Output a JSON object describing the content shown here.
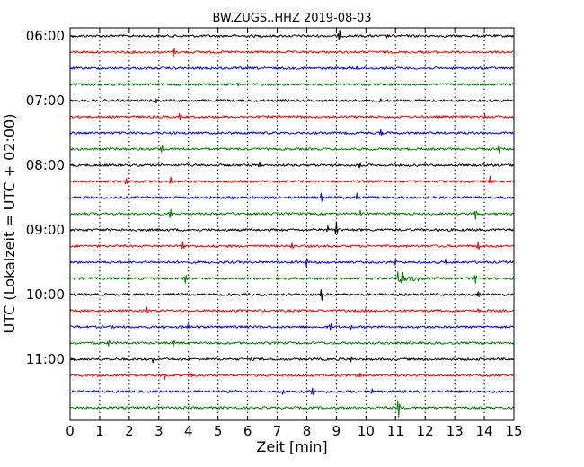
{
  "chart_data": {
    "type": "line",
    "subtype": "seismogram-dayplot",
    "title": "BW.ZUGS..HHZ 2019-08-03",
    "xlabel": "Zeit  [min]",
    "ylabel": "UTC (Lokalzeit = UTC + 02:00)",
    "xlim": [
      0,
      15
    ],
    "x_ticks": [
      "0",
      "1",
      "2",
      "3",
      "4",
      "5",
      "6",
      "7",
      "8",
      "9",
      "10",
      "11",
      "12",
      "13",
      "14",
      "15"
    ],
    "grid": "vertical dotted at each minute",
    "minutes_per_line": 15,
    "start_time": "06:00",
    "y_tick_labels": [
      "06:00",
      "07:00",
      "08:00",
      "09:00",
      "10:00",
      "11:00"
    ],
    "line_colors": [
      "#000000",
      "#ff0000",
      "#0000ff",
      "#008000"
    ],
    "lines": [
      {
        "start": "06:00",
        "color": "#000000",
        "spikes": [
          {
            "min": 9.1,
            "amp": 7
          },
          {
            "min": 10.7,
            "amp": 3
          }
        ]
      },
      {
        "start": "06:15",
        "color": "#ff0000",
        "spikes": [
          {
            "min": 3.5,
            "amp": 5
          }
        ]
      },
      {
        "start": "06:30",
        "color": "#0000ff",
        "spikes": [
          {
            "min": 9.7,
            "amp": 3
          }
        ]
      },
      {
        "start": "06:45",
        "color": "#008000",
        "spikes": [
          {
            "min": 5.7,
            "amp": 3
          }
        ]
      },
      {
        "start": "07:00",
        "color": "#000000",
        "spikes": [
          {
            "min": 2.9,
            "amp": 3
          },
          {
            "min": 10.5,
            "amp": 3
          }
        ]
      },
      {
        "start": "07:15",
        "color": "#ff0000",
        "spikes": [
          {
            "min": 3.7,
            "amp": 4
          },
          {
            "min": 14.0,
            "amp": 3
          }
        ]
      },
      {
        "start": "07:30",
        "color": "#0000ff",
        "spikes": [
          {
            "min": 10.5,
            "amp": 3
          }
        ]
      },
      {
        "start": "07:45",
        "color": "#008000",
        "spikes": [
          {
            "min": 3.1,
            "amp": 5
          },
          {
            "min": 14.5,
            "amp": 4
          }
        ]
      },
      {
        "start": "08:00",
        "color": "#000000",
        "spikes": [
          {
            "min": 6.4,
            "amp": 3
          },
          {
            "min": 9.8,
            "amp": 3
          }
        ]
      },
      {
        "start": "08:15",
        "color": "#ff0000",
        "spikes": [
          {
            "min": 1.9,
            "amp": 4
          },
          {
            "min": 3.4,
            "amp": 5
          },
          {
            "min": 14.2,
            "amp": 6
          }
        ]
      },
      {
        "start": "08:30",
        "color": "#0000ff",
        "spikes": [
          {
            "min": 5.5,
            "amp": 3
          },
          {
            "min": 8.5,
            "amp": 6
          },
          {
            "min": 9.7,
            "amp": 4
          }
        ]
      },
      {
        "start": "08:45",
        "color": "#008000",
        "spikes": [
          {
            "min": 3.4,
            "amp": 6
          },
          {
            "min": 9.8,
            "amp": 3
          },
          {
            "min": 13.7,
            "amp": 6
          }
        ]
      },
      {
        "start": "09:00",
        "color": "#000000",
        "spikes": [
          {
            "min": 8.7,
            "amp": 4
          },
          {
            "min": 9.0,
            "amp": 8
          }
        ]
      },
      {
        "start": "09:15",
        "color": "#ff0000",
        "spikes": [
          {
            "min": 3.8,
            "amp": 5
          },
          {
            "min": 7.5,
            "amp": 3
          },
          {
            "min": 13.8,
            "amp": 6
          }
        ]
      },
      {
        "start": "09:30",
        "color": "#0000ff",
        "spikes": [
          {
            "min": 8.0,
            "amp": 5
          },
          {
            "min": 11.0,
            "amp": 3
          },
          {
            "min": 12.7,
            "amp": 3
          }
        ]
      },
      {
        "start": "09:45",
        "color": "#008000",
        "spikes": [
          {
            "min": 3.9,
            "amp": 6
          },
          {
            "min": 11.1,
            "amp": 8,
            "ring": 1.2
          },
          {
            "min": 13.7,
            "amp": 6
          }
        ]
      },
      {
        "start": "10:00",
        "color": "#000000",
        "spikes": [
          {
            "min": 8.5,
            "amp": 7
          },
          {
            "min": 13.8,
            "amp": 3
          }
        ]
      },
      {
        "start": "10:15",
        "color": "#ff0000",
        "spikes": [
          {
            "min": 2.6,
            "amp": 3
          },
          {
            "min": 10.0,
            "amp": 3
          },
          {
            "min": 13.8,
            "amp": 3
          }
        ]
      },
      {
        "start": "10:30",
        "color": "#0000ff",
        "spikes": [
          {
            "min": 4.0,
            "amp": 3
          },
          {
            "min": 8.8,
            "amp": 5
          },
          {
            "min": 9.5,
            "amp": 4
          }
        ]
      },
      {
        "start": "10:45",
        "color": "#008000",
        "spikes": [
          {
            "min": 1.3,
            "amp": 3
          },
          {
            "min": 3.5,
            "amp": 5
          }
        ]
      },
      {
        "start": "11:00",
        "color": "#000000",
        "spikes": [
          {
            "min": 2.8,
            "amp": 3
          },
          {
            "min": 9.5,
            "amp": 3
          }
        ]
      },
      {
        "start": "11:15",
        "color": "#ff0000",
        "spikes": [
          {
            "min": 3.2,
            "amp": 4
          },
          {
            "min": 4.1,
            "amp": 3
          },
          {
            "min": 9.8,
            "amp": 4
          }
        ]
      },
      {
        "start": "11:30",
        "color": "#0000ff",
        "spikes": [
          {
            "min": 7.2,
            "amp": 3
          },
          {
            "min": 8.2,
            "amp": 4
          },
          {
            "min": 10.2,
            "amp": 4
          }
        ]
      },
      {
        "start": "11:45",
        "color": "#008000",
        "spikes": [
          {
            "min": 11.1,
            "amp": 12
          }
        ]
      }
    ]
  }
}
